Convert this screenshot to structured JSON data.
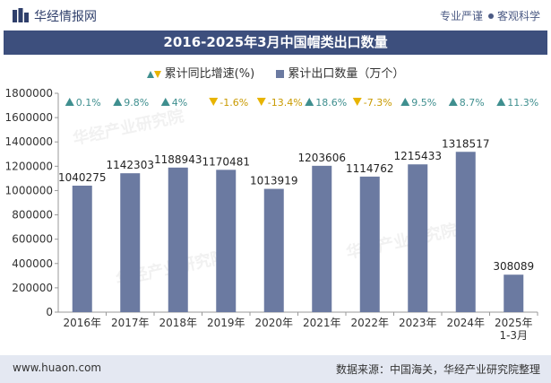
{
  "header": {
    "site_name": "华经情报网",
    "tagline_left": "专业严谨",
    "tagline_right": "客观科学"
  },
  "title": "2016-2025年3月中国帽类出口数量",
  "legend": {
    "growth_label": "累计同比增速(%)",
    "volume_label": "累计出口数量（万个）"
  },
  "watermark_text": "华经产业研究院",
  "footer": {
    "website": "www.huaon.com",
    "source": "数据来源：中国海关，华经产业研究院整理"
  },
  "colors": {
    "bar": "#6b7aa1",
    "up": "#3f8f8f",
    "down": "#e8b400",
    "title_bg": "#3d4f7d",
    "footer_bg": "#e4e8f2"
  },
  "chart_data": {
    "type": "bar",
    "title": "2016-2025年3月中国帽类出口数量",
    "categories": [
      "2016年",
      "2017年",
      "2018年",
      "2019年",
      "2020年",
      "2021年",
      "2022年",
      "2023年",
      "2024年",
      "2025年\n1-3月"
    ],
    "series": [
      {
        "name": "累计出口数量（万个）",
        "values": [
          1040275,
          1142303,
          1188943,
          1170481,
          1013919,
          1203606,
          1114762,
          1215433,
          1318517,
          308089
        ]
      },
      {
        "name": "累计同比增速(%)",
        "values": [
          0.1,
          9.8,
          4,
          -1.6,
          -13.4,
          18.6,
          -7.3,
          9.5,
          8.7,
          11.3
        ]
      }
    ],
    "growth_labels": [
      "0.1%",
      "9.8%",
      "4%",
      "-1.6%",
      "-13.4%",
      "18.6%",
      "-7.3%",
      "9.5%",
      "8.7%",
      "11.3%"
    ],
    "ylim": [
      0,
      1800000
    ],
    "yticks": [
      0,
      200000,
      400000,
      600000,
      800000,
      1000000,
      1200000,
      1400000,
      1600000,
      1800000
    ],
    "grid": false,
    "legend_position": "top"
  }
}
